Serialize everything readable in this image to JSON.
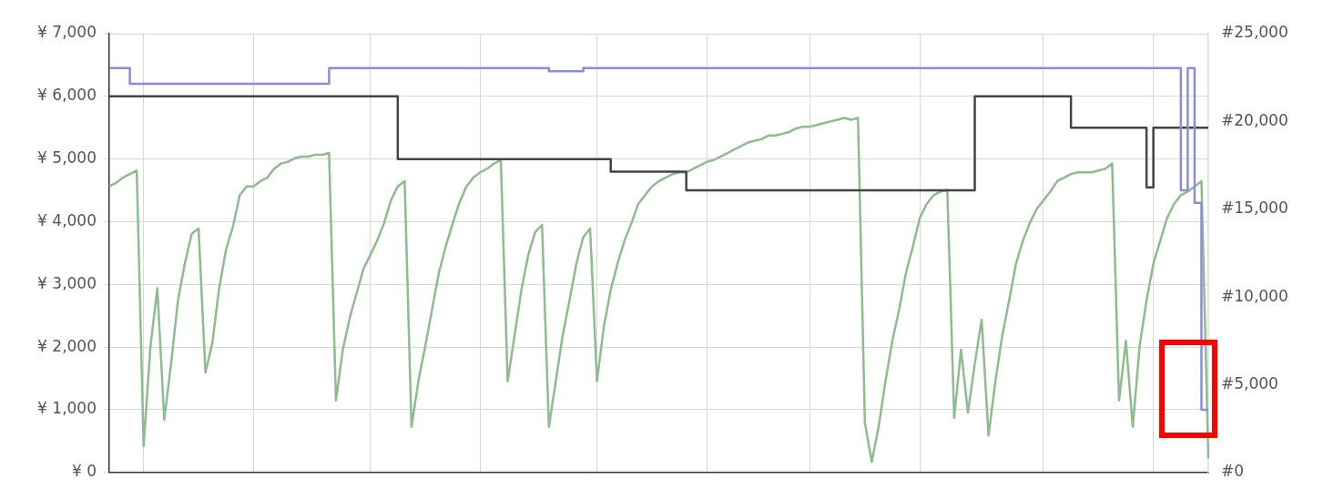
{
  "chart_data": {
    "type": "step",
    "categories": [
      null,
      null,
      null,
      null,
      null,
      null,
      null,
      null,
      null,
      null,
      null,
      null,
      null,
      null,
      null,
      null,
      null,
      null,
      null,
      null,
      null,
      null,
      null,
      null,
      null,
      null,
      null,
      null,
      null,
      null,
      null,
      null,
      null,
      null,
      null,
      null,
      null,
      null,
      null,
      null,
      null,
      null,
      null,
      null,
      null,
      null,
      null,
      null,
      null,
      null,
      null,
      null,
      null,
      null,
      null,
      null,
      null,
      null,
      null,
      null,
      null,
      null,
      null,
      null,
      null,
      null,
      null,
      null,
      null,
      null,
      null,
      null,
      null,
      null,
      null,
      null,
      null,
      null,
      null,
      null,
      null,
      null,
      null,
      null,
      null,
      null,
      null,
      null,
      null,
      null,
      null,
      null,
      null,
      null,
      null,
      null,
      null,
      null,
      null,
      null,
      null,
      null,
      null,
      null,
      null,
      null,
      null,
      null,
      null,
      null,
      null,
      null,
      null,
      null,
      null,
      null,
      null,
      null,
      null,
      null,
      null,
      null,
      null,
      null,
      null,
      null,
      null,
      null,
      null,
      null,
      null,
      null,
      null,
      null,
      null,
      null,
      null,
      null,
      null,
      null,
      null,
      null,
      null,
      null,
      null,
      null,
      null,
      null,
      null,
      null,
      null,
      null,
      null,
      null,
      null,
      null,
      null,
      null,
      null,
      null,
      null
    ],
    "ylim": [
      0,
      7000
    ],
    "yticks": [
      {
        "value": 0,
        "label": "¥ 0"
      },
      {
        "value": 1000,
        "label": "¥ 1,000"
      },
      {
        "value": 2000,
        "label": "¥ 2,000"
      },
      {
        "value": 3000,
        "label": "¥ 3,000"
      },
      {
        "value": 4000,
        "label": "¥ 4,000"
      },
      {
        "value": 5000,
        "label": "¥ 5,000"
      },
      {
        "value": 6000,
        "label": "¥ 6,000"
      },
      {
        "value": 7000,
        "label": "¥ 7,000"
      }
    ],
    "y2lim": [
      0,
      25000
    ],
    "y2ticks": [
      {
        "value": 0,
        "label": "#0"
      },
      {
        "value": 5000,
        "label": "#5,000"
      },
      {
        "value": 10000,
        "label": "#10,000"
      },
      {
        "value": 15000,
        "label": "#15,000"
      },
      {
        "value": 20000,
        "label": "#20,000"
      },
      {
        "value": 25000,
        "label": "#25,000"
      }
    ],
    "grid": true,
    "legend": false,
    "tick_labels": "y",
    "series": [
      {
        "color": "#8c8cdc",
        "values": [
          6450,
          6450,
          6450,
          6450,
          6200,
          6200,
          6200,
          6200,
          6200,
          6200,
          6200,
          6200,
          6200,
          6200,
          6200,
          6200,
          6200,
          6200,
          6200,
          6200,
          6200,
          6200,
          6200,
          6200,
          6200,
          6200,
          6200,
          6200,
          6200,
          6200,
          6200,
          6200,
          6200,
          6450,
          6450,
          6450,
          6450,
          6450,
          6450,
          6450,
          6450,
          6450,
          6450,
          6450,
          6450,
          6450,
          6450,
          6450,
          6450,
          6450,
          6450,
          6450,
          6450,
          6450,
          6450,
          6450,
          6450,
          6450,
          6450,
          6450,
          6450,
          6450,
          6450,
          6450,
          6450,
          6400,
          6400,
          6400,
          6400,
          6400,
          6450,
          6450,
          6450,
          6450,
          6450,
          6450,
          6450,
          6450,
          6450,
          6450,
          6450,
          6450,
          6450,
          6450,
          6450,
          6450,
          6450,
          6450,
          6450,
          6450,
          6450,
          6450,
          6450,
          6450,
          6450,
          6450,
          6450,
          6450,
          6450,
          6450,
          6450,
          6450,
          6450,
          6450,
          6450,
          6450,
          6450,
          6450,
          6450,
          6450,
          6450,
          6450,
          6450,
          6450,
          6450,
          6450,
          6450,
          6450,
          6450,
          6450,
          6450,
          6450,
          6450,
          6450,
          6450,
          6450,
          6450,
          6450,
          6450,
          6450,
          6450,
          6450,
          6450,
          6450,
          6450,
          6450,
          6450,
          6450,
          6450,
          6450,
          6450,
          6450,
          6450,
          6450,
          6450,
          6450,
          6450,
          6450,
          6450,
          6450,
          6450,
          6450,
          6450,
          6450,
          6450,
          6450,
          6450,
          4500,
          6450,
          4300,
          1000
        ]
      },
      {
        "color": "#444444",
        "values": [
          6000,
          6000,
          6000,
          6000,
          6000,
          6000,
          6000,
          6000,
          6000,
          6000,
          6000,
          6000,
          6000,
          6000,
          6000,
          6000,
          6000,
          6000,
          6000,
          6000,
          6000,
          6000,
          6000,
          6000,
          6000,
          6000,
          6000,
          6000,
          6000,
          6000,
          6000,
          6000,
          6000,
          6000,
          6000,
          6000,
          6000,
          6000,
          6000,
          6000,
          6000,
          6000,
          6000,
          5000,
          5000,
          5000,
          5000,
          5000,
          5000,
          5000,
          5000,
          5000,
          5000,
          5000,
          5000,
          5000,
          5000,
          5000,
          5000,
          5000,
          5000,
          5000,
          5000,
          5000,
          5000,
          5000,
          5000,
          5000,
          5000,
          5000,
          5000,
          5000,
          5000,
          5000,
          4800,
          4800,
          4800,
          4800,
          4800,
          4800,
          4800,
          4800,
          4800,
          4800,
          4800,
          4500,
          4500,
          4500,
          4500,
          4500,
          4500,
          4500,
          4500,
          4500,
          4500,
          4500,
          4500,
          4500,
          4500,
          4500,
          4500,
          4500,
          4500,
          4500,
          4500,
          4500,
          4500,
          4500,
          4500,
          4500,
          4500,
          4500,
          4500,
          4500,
          4500,
          4500,
          4500,
          4500,
          4500,
          4500,
          4500,
          4500,
          4500,
          4500,
          4500,
          4500,
          4500,
          6000,
          6000,
          6000,
          6000,
          6000,
          6000,
          6000,
          6000,
          6000,
          6000,
          6000,
          6000,
          6000,
          6000,
          5500,
          5500,
          5500,
          5500,
          5500,
          5500,
          5500,
          5500,
          5500,
          5500,
          5500,
          4550,
          5500,
          5500,
          5500,
          5500,
          5500,
          5500,
          5500,
          5500
        ]
      },
      {
        "color": "#8fbc8f",
        "axis": "y2",
        "type": "line",
        "values": [
          16300,
          16500,
          16800,
          17000,
          17200,
          1500,
          7200,
          10500,
          3000,
          6200,
          9800,
          11900,
          13600,
          13900,
          5700,
          7350,
          10500,
          12700,
          14000,
          15800,
          16300,
          16300,
          16600,
          16800,
          17300,
          17600,
          17700,
          17900,
          18000,
          18000,
          18100,
          18100,
          18200,
          4100,
          7000,
          8800,
          10200,
          11600,
          12400,
          13200,
          14200,
          15500,
          16300,
          16600,
          2600,
          5200,
          7200,
          9300,
          11400,
          12900,
          14200,
          15400,
          16300,
          16800,
          17100,
          17300,
          17600,
          17800,
          5200,
          7800,
          10400,
          12400,
          13700,
          14100,
          2600,
          5200,
          7800,
          9800,
          11900,
          13400,
          13900,
          5200,
          8300,
          10400,
          11900,
          13200,
          14200,
          15300,
          15800,
          16300,
          16600,
          16800,
          17000,
          17100,
          17100,
          17300,
          17500,
          17700,
          17800,
          18000,
          18200,
          18400,
          18600,
          18800,
          18900,
          19000,
          19200,
          19200,
          19300,
          19400,
          19600,
          19700,
          19700,
          19800,
          19900,
          20000,
          20100,
          20200,
          20100,
          20200,
          2850,
          600,
          2600,
          5200,
          7500,
          9300,
          11400,
          12900,
          14500,
          15300,
          15800,
          16000,
          16100,
          3100,
          7000,
          3400,
          6200,
          8700,
          2100,
          5200,
          7800,
          9800,
          11900,
          13200,
          14200,
          15000,
          15500,
          16000,
          16600,
          16800,
          17000,
          17100,
          17100,
          17100,
          17200,
          17300,
          17600,
          4100,
          7500,
          2600,
          7200,
          9800,
          11900,
          13200,
          14500,
          15300,
          15800,
          16000,
          16300,
          16600,
          800
        ]
      }
    ]
  }
}
